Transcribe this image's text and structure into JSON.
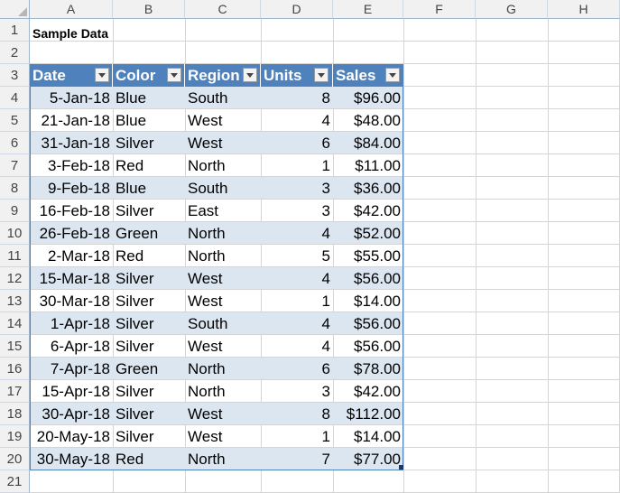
{
  "columns": [
    "A",
    "B",
    "C",
    "D",
    "E",
    "F",
    "G",
    "H"
  ],
  "rows": [
    "1",
    "2",
    "3",
    "4",
    "5",
    "6",
    "7",
    "8",
    "9",
    "10",
    "11",
    "12",
    "13",
    "14",
    "15",
    "16",
    "17",
    "18",
    "19",
    "20",
    "21"
  ],
  "title": "Sample Data",
  "table": {
    "headers": [
      "Date",
      "Color",
      "Region",
      "Units",
      "Sales"
    ],
    "rows": [
      [
        "5-Jan-18",
        "Blue",
        "South",
        "8",
        "$96.00"
      ],
      [
        "21-Jan-18",
        "Blue",
        "West",
        "4",
        "$48.00"
      ],
      [
        "31-Jan-18",
        "Silver",
        "West",
        "6",
        "$84.00"
      ],
      [
        "3-Feb-18",
        "Red",
        "North",
        "1",
        "$11.00"
      ],
      [
        "9-Feb-18",
        "Blue",
        "South",
        "3",
        "$36.00"
      ],
      [
        "16-Feb-18",
        "Silver",
        "East",
        "3",
        "$42.00"
      ],
      [
        "26-Feb-18",
        "Green",
        "North",
        "4",
        "$52.00"
      ],
      [
        "2-Mar-18",
        "Red",
        "North",
        "5",
        "$55.00"
      ],
      [
        "15-Mar-18",
        "Silver",
        "West",
        "4",
        "$56.00"
      ],
      [
        "30-Mar-18",
        "Silver",
        "West",
        "1",
        "$14.00"
      ],
      [
        "1-Apr-18",
        "Silver",
        "South",
        "4",
        "$56.00"
      ],
      [
        "6-Apr-18",
        "Silver",
        "West",
        "4",
        "$56.00"
      ],
      [
        "7-Apr-18",
        "Green",
        "North",
        "6",
        "$78.00"
      ],
      [
        "15-Apr-18",
        "Silver",
        "North",
        "3",
        "$42.00"
      ],
      [
        "30-Apr-18",
        "Silver",
        "West",
        "8",
        "$112.00"
      ],
      [
        "20-May-18",
        "Silver",
        "West",
        "1",
        "$14.00"
      ],
      [
        "30-May-18",
        "Red",
        "North",
        "7",
        "$77.00"
      ]
    ]
  },
  "colors": {
    "header_bg": "#4f81bd",
    "stripe_bg": "#dce6f1"
  }
}
